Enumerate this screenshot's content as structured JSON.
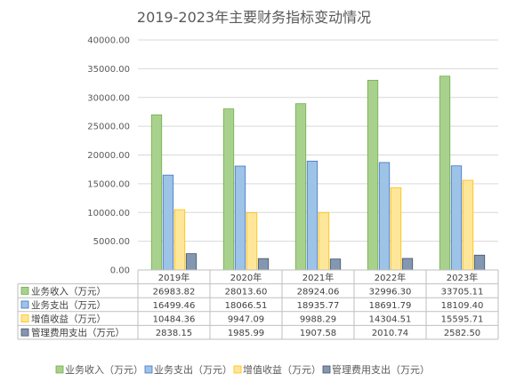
{
  "chart_data": {
    "type": "bar",
    "title": "2019-2023年主要财务指标变动情况",
    "categories": [
      "2019年",
      "2020年",
      "2021年",
      "2022年",
      "2023年"
    ],
    "ylim": [
      0,
      40000
    ],
    "yticks": [
      "0.00",
      "5000.00",
      "10000.00",
      "15000.00",
      "20000.00",
      "25000.00",
      "30000.00",
      "35000.00",
      "40000.00"
    ],
    "grid": true,
    "legend_position": "bottom",
    "series": [
      {
        "name": "业务收入（万元）",
        "color": "#a9d18e",
        "stroke": "#70ad47",
        "values": [
          26983.82,
          28013.6,
          28924.06,
          32996.3,
          33705.11
        ],
        "labels": [
          "26983.82",
          "28013.60",
          "28924.06",
          "32996.30",
          "33705.11"
        ]
      },
      {
        "name": "业务支出（万元）",
        "color": "#9dc3e6",
        "stroke": "#4472c4",
        "values": [
          16499.46,
          18066.51,
          18935.77,
          18691.79,
          18109.4
        ],
        "labels": [
          "16499.46",
          "18066.51",
          "18935.77",
          "18691.79",
          "18109.40"
        ]
      },
      {
        "name": "增值收益（万元）",
        "color": "#ffe699",
        "stroke": "#ffc000",
        "values": [
          10484.36,
          9947.09,
          9988.29,
          14304.51,
          15595.71
        ],
        "labels": [
          "10484.36",
          "9947.09",
          "9988.29",
          "14304.51",
          "15595.71"
        ]
      },
      {
        "name": "管理费用支出（万元）",
        "color": "#8497b0",
        "stroke": "#44546a",
        "values": [
          2838.15,
          1985.99,
          1907.58,
          2010.74,
          2582.5
        ],
        "labels": [
          "2838.15",
          "1985.99",
          "1907.58",
          "2010.74",
          "2582.50"
        ]
      }
    ]
  }
}
